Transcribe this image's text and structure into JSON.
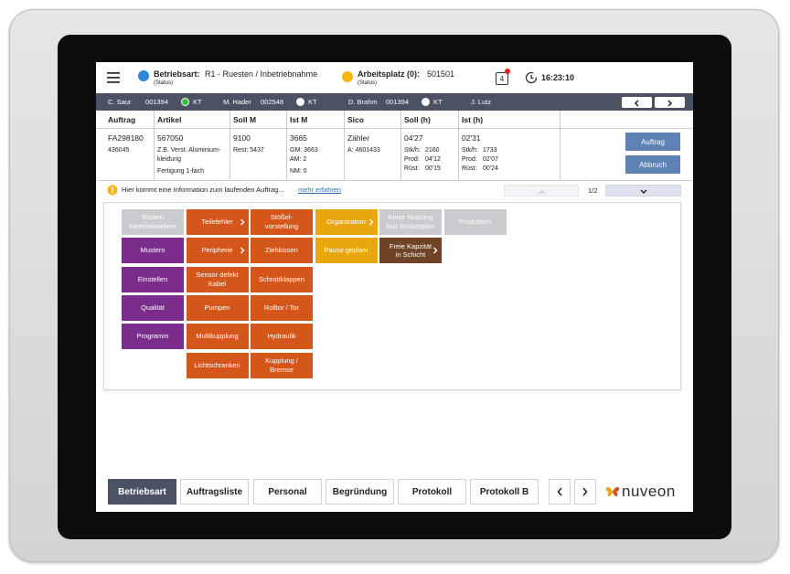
{
  "header": {
    "mode_label": "Betriebsart:",
    "mode_value": "R1 - Ruesten / Inbetriebnahme",
    "mode_status": "(Status)",
    "workplace_label": "Arbeitsplatz (0):",
    "workplace_value": "501501",
    "workplace_status": "(Status)",
    "notifications": "4",
    "time": "16:23:10"
  },
  "staff": [
    {
      "name": "C. Saur",
      "id": "001394",
      "role": "KT",
      "dot_color": "#3dbb4a"
    },
    {
      "name": "M. Hader",
      "id": "002548",
      "role": "KT",
      "dot_color": "#ffffff"
    },
    {
      "name": "D. Brahm",
      "id": "001394",
      "role": "KT",
      "dot_color": "#ffffff"
    },
    {
      "name": "J. Lutz"
    }
  ],
  "order": {
    "columns": [
      "Auftrag",
      "Artikel",
      "Soll M",
      "Ist M",
      "Sico",
      "Soll (h)",
      "Ist (h)"
    ],
    "cells": [
      {
        "main": "FA298180",
        "lines": [
          "436045"
        ]
      },
      {
        "main": "567050",
        "lines": [
          "Z.B. Verst. Aluminium-",
          "kleidung",
          "Fertigung 1-fach"
        ]
      },
      {
        "main": "9100",
        "lines": [
          "Rest: 5437"
        ]
      },
      {
        "main": "3665",
        "lines": [
          "GM: 3663",
          "AM: 2",
          "NM: 0"
        ]
      },
      {
        "main": "Zähler",
        "lines": [
          "A: 4601433"
        ]
      },
      {
        "main": "04'27",
        "pairs": [
          [
            "Stk/h:",
            "2160"
          ],
          [
            "Prod:",
            "04'12"
          ],
          [
            "Rüst:",
            "00'15"
          ]
        ]
      },
      {
        "main": "02'31",
        "pairs": [
          [
            "Stk/h:",
            "1733"
          ],
          [
            "Prod:",
            "02'07"
          ],
          [
            "Rüst:",
            "00'24"
          ]
        ]
      }
    ],
    "actions": [
      "Auftrag",
      "Abbruch"
    ]
  },
  "info": {
    "text": "Hier kommt eine Information zum laufenden Auftrag...",
    "link": "mehr erfahren",
    "page": "1/2"
  },
  "tile_columns": [
    [
      {
        "lines": [
          "Rüsten",
          "Inbetriebnahme"
        ],
        "color": "#c9cbce"
      },
      {
        "lines": [
          "Mustern"
        ],
        "color": "#7b2d8c"
      },
      {
        "lines": [
          "Einstellen"
        ],
        "color": "#7b2d8c"
      },
      {
        "lines": [
          "Qualität"
        ],
        "color": "#7b2d8c"
      },
      {
        "lines": [
          "Programm"
        ],
        "color": "#7b2d8c"
      }
    ],
    [
      {
        "lines": [
          "Teilefehler"
        ],
        "color": "#d5561b",
        "arrow": true
      },
      {
        "lines": [
          "Peripherie"
        ],
        "color": "#d5561b",
        "arrow": true
      },
      {
        "lines": [
          "Sensor defekt",
          "Kabel"
        ],
        "color": "#d5561b"
      },
      {
        "lines": [
          "Pumpen"
        ],
        "color": "#d5561b"
      },
      {
        "lines": [
          "Multikupplung"
        ],
        "color": "#d5561b"
      },
      {
        "lines": [
          "Lichtschranken"
        ],
        "color": "#d5561b"
      }
    ],
    [
      {
        "lines": [
          "Stößel-",
          "vorstellung"
        ],
        "color": "#d5561b"
      },
      {
        "lines": [
          "Ziehkissen"
        ],
        "color": "#d5561b"
      },
      {
        "lines": [
          "Schrottklappen"
        ],
        "color": "#d5561b"
      },
      {
        "lines": [
          "Rolltor / Tor"
        ],
        "color": "#d5561b"
      },
      {
        "lines": [
          "Hydraulik"
        ],
        "color": "#d5561b"
      },
      {
        "lines": [
          "Kupplung /",
          "Bremse"
        ],
        "color": "#d5561b"
      }
    ],
    [
      {
        "lines": [
          "Organisation"
        ],
        "color": "#e9a70d",
        "arrow": true
      },
      {
        "lines": [
          "Pause geplant"
        ],
        "color": "#e9a70d"
      }
    ],
    [
      {
        "lines": [
          "Keine Nutzung",
          "laut Schichtplan"
        ],
        "color": "#c9cbce"
      },
      {
        "lines": [
          "Freie Kapzität",
          "in Schicht"
        ],
        "color": "#6e4326",
        "arrow": true
      }
    ],
    [
      {
        "lines": [
          "Produktion"
        ],
        "color": "#c9cbce"
      }
    ]
  ],
  "tabs": [
    {
      "label": "Betriebsart",
      "active": true
    },
    {
      "label": "Auftragsliste"
    },
    {
      "label": "Personal"
    },
    {
      "label": "Begründung"
    },
    {
      "label": "Protokoll"
    },
    {
      "label": "Protokoll B"
    }
  ],
  "brand": "nuveon"
}
